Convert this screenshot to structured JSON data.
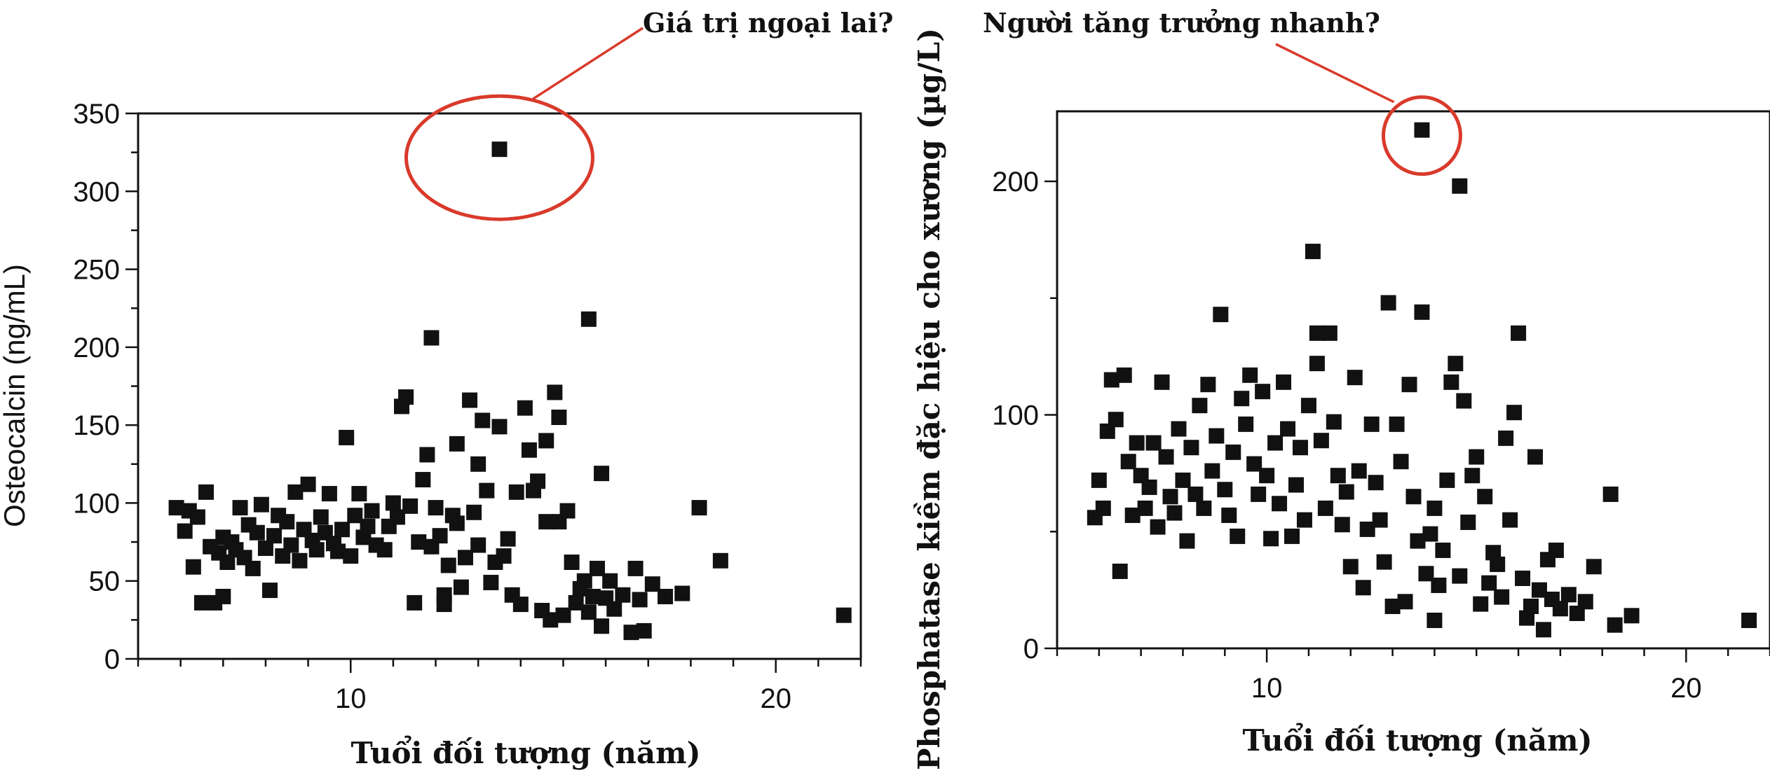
{
  "colors": {
    "marker": "#111111",
    "highlight": "#d93a2b",
    "axis": "#111111",
    "background": "#ffffff"
  },
  "chart_data": [
    {
      "type": "scatter",
      "title": "",
      "xlabel": "Tuổi đối tượng (năm)",
      "ylabel": "Osteocalcin (ng/mL)",
      "xlim": [
        5,
        22
      ],
      "ylim": [
        0,
        350
      ],
      "xticks": [
        10,
        20
      ],
      "xtick_labels": [
        "10",
        "20"
      ],
      "yticks": [
        0,
        50,
        100,
        150,
        200,
        250,
        300,
        350
      ],
      "ytick_labels": [
        "0",
        "50",
        "100",
        "150",
        "200",
        "250",
        "300",
        "350"
      ],
      "marker": "square",
      "grid": false,
      "annotation": {
        "text": "Giá trị ngoại lai?",
        "point": [
          13.5,
          327
        ]
      },
      "points": [
        [
          5.9,
          97
        ],
        [
          6.1,
          82
        ],
        [
          6.2,
          95
        ],
        [
          6.3,
          59
        ],
        [
          6.4,
          91
        ],
        [
          6.5,
          36
        ],
        [
          6.6,
          107
        ],
        [
          6.7,
          72
        ],
        [
          6.8,
          36
        ],
        [
          6.9,
          68
        ],
        [
          7.0,
          78
        ],
        [
          7.0,
          40
        ],
        [
          7.1,
          62
        ],
        [
          7.2,
          75
        ],
        [
          7.3,
          70
        ],
        [
          7.4,
          97
        ],
        [
          7.5,
          65
        ],
        [
          7.6,
          86
        ],
        [
          7.7,
          58
        ],
        [
          7.8,
          81
        ],
        [
          7.9,
          99
        ],
        [
          8.0,
          71
        ],
        [
          8.1,
          44
        ],
        [
          8.2,
          79
        ],
        [
          8.3,
          92
        ],
        [
          8.4,
          66
        ],
        [
          8.5,
          88
        ],
        [
          8.6,
          73
        ],
        [
          8.7,
          107
        ],
        [
          8.8,
          63
        ],
        [
          8.9,
          83
        ],
        [
          9.0,
          112
        ],
        [
          9.1,
          76
        ],
        [
          9.2,
          70
        ],
        [
          9.3,
          91
        ],
        [
          9.4,
          81
        ],
        [
          9.5,
          106
        ],
        [
          9.6,
          74
        ],
        [
          9.7,
          69
        ],
        [
          9.8,
          83
        ],
        [
          9.9,
          142
        ],
        [
          10.0,
          66
        ],
        [
          10.1,
          92
        ],
        [
          10.2,
          106
        ],
        [
          10.3,
          78
        ],
        [
          10.4,
          85
        ],
        [
          10.5,
          95
        ],
        [
          10.6,
          73
        ],
        [
          10.8,
          70
        ],
        [
          10.9,
          85
        ],
        [
          11.0,
          100
        ],
        [
          11.1,
          91
        ],
        [
          11.2,
          162
        ],
        [
          11.3,
          168
        ],
        [
          11.4,
          98
        ],
        [
          11.5,
          36
        ],
        [
          11.6,
          75
        ],
        [
          11.7,
          115
        ],
        [
          11.8,
          131
        ],
        [
          11.9,
          72
        ],
        [
          11.9,
          206
        ],
        [
          12.0,
          97
        ],
        [
          12.1,
          79
        ],
        [
          12.2,
          35
        ],
        [
          12.2,
          41
        ],
        [
          12.3,
          60
        ],
        [
          12.4,
          92
        ],
        [
          12.5,
          138
        ],
        [
          12.5,
          87
        ],
        [
          12.6,
          46
        ],
        [
          12.7,
          65
        ],
        [
          12.8,
          166
        ],
        [
          12.9,
          94
        ],
        [
          13.0,
          125
        ],
        [
          13.0,
          73
        ],
        [
          13.1,
          153
        ],
        [
          13.2,
          108
        ],
        [
          13.3,
          49
        ],
        [
          13.4,
          62
        ],
        [
          13.5,
          149
        ],
        [
          13.6,
          66
        ],
        [
          13.7,
          77
        ],
        [
          13.8,
          41
        ],
        [
          13.9,
          107
        ],
        [
          14.0,
          35
        ],
        [
          14.1,
          161
        ],
        [
          14.2,
          134
        ],
        [
          14.3,
          108
        ],
        [
          14.4,
          114
        ],
        [
          14.5,
          31
        ],
        [
          14.6,
          140
        ],
        [
          14.6,
          88
        ],
        [
          14.7,
          25
        ],
        [
          14.8,
          171
        ],
        [
          14.9,
          155
        ],
        [
          14.9,
          88
        ],
        [
          15.0,
          28
        ],
        [
          15.1,
          95
        ],
        [
          15.2,
          62
        ],
        [
          15.3,
          36
        ],
        [
          15.4,
          45
        ],
        [
          15.5,
          50
        ],
        [
          15.6,
          218
        ],
        [
          15.6,
          30
        ],
        [
          15.7,
          40
        ],
        [
          15.8,
          58
        ],
        [
          15.9,
          119
        ],
        [
          15.9,
          21
        ],
        [
          16.0,
          39
        ],
        [
          16.1,
          50
        ],
        [
          16.2,
          32
        ],
        [
          16.4,
          41
        ],
        [
          16.6,
          17
        ],
        [
          16.7,
          58
        ],
        [
          16.8,
          38
        ],
        [
          16.9,
          18
        ],
        [
          17.1,
          48
        ],
        [
          17.4,
          40
        ],
        [
          17.8,
          42
        ],
        [
          18.2,
          97
        ],
        [
          18.7,
          63
        ],
        [
          21.6,
          28
        ],
        [
          13.5,
          327
        ]
      ]
    },
    {
      "type": "scatter",
      "title": "",
      "xlabel": "Tuổi đối tượng (năm)",
      "ylabel": "Phosphatase kiềm đặc hiệu cho xương (µg/L)",
      "xlim": [
        5,
        22
      ],
      "ylim": [
        0,
        230
      ],
      "xticks": [
        10,
        20
      ],
      "xtick_labels": [
        "10",
        "20"
      ],
      "yticks": [
        0,
        100,
        200
      ],
      "ytick_labels": [
        "0",
        "100",
        "200"
      ],
      "marker": "square",
      "grid": false,
      "annotation": {
        "text": "Người tăng trưởng nhanh?",
        "point": [
          13.7,
          222
        ]
      },
      "points": [
        [
          5.9,
          56
        ],
        [
          6.0,
          72
        ],
        [
          6.1,
          60
        ],
        [
          6.2,
          93
        ],
        [
          6.3,
          115
        ],
        [
          6.4,
          98
        ],
        [
          6.5,
          33
        ],
        [
          6.6,
          117
        ],
        [
          6.7,
          80
        ],
        [
          6.8,
          57
        ],
        [
          6.9,
          88
        ],
        [
          7.0,
          74
        ],
        [
          7.1,
          60
        ],
        [
          7.2,
          69
        ],
        [
          7.3,
          88
        ],
        [
          7.4,
          52
        ],
        [
          7.5,
          114
        ],
        [
          7.6,
          82
        ],
        [
          7.7,
          65
        ],
        [
          7.8,
          58
        ],
        [
          7.9,
          94
        ],
        [
          8.0,
          72
        ],
        [
          8.1,
          46
        ],
        [
          8.2,
          86
        ],
        [
          8.3,
          66
        ],
        [
          8.4,
          104
        ],
        [
          8.5,
          60
        ],
        [
          8.6,
          113
        ],
        [
          8.7,
          76
        ],
        [
          8.8,
          91
        ],
        [
          8.9,
          143
        ],
        [
          9.0,
          68
        ],
        [
          9.1,
          57
        ],
        [
          9.2,
          84
        ],
        [
          9.3,
          48
        ],
        [
          9.4,
          107
        ],
        [
          9.5,
          96
        ],
        [
          9.6,
          117
        ],
        [
          9.7,
          79
        ],
        [
          9.8,
          66
        ],
        [
          9.9,
          110
        ],
        [
          10.0,
          74
        ],
        [
          10.1,
          47
        ],
        [
          10.2,
          88
        ],
        [
          10.3,
          62
        ],
        [
          10.4,
          114
        ],
        [
          10.5,
          94
        ],
        [
          10.6,
          48
        ],
        [
          10.7,
          70
        ],
        [
          10.8,
          86
        ],
        [
          10.9,
          55
        ],
        [
          11.0,
          104
        ],
        [
          11.1,
          170
        ],
        [
          11.2,
          122
        ],
        [
          11.2,
          135
        ],
        [
          11.3,
          89
        ],
        [
          11.4,
          60
        ],
        [
          11.5,
          135
        ],
        [
          11.6,
          97
        ],
        [
          11.7,
          74
        ],
        [
          11.8,
          53
        ],
        [
          11.9,
          67
        ],
        [
          12.0,
          35
        ],
        [
          12.1,
          116
        ],
        [
          12.2,
          76
        ],
        [
          12.3,
          26
        ],
        [
          12.4,
          51
        ],
        [
          12.5,
          96
        ],
        [
          12.6,
          71
        ],
        [
          12.7,
          55
        ],
        [
          12.8,
          37
        ],
        [
          12.9,
          148
        ],
        [
          13.0,
          18
        ],
        [
          13.1,
          96
        ],
        [
          13.2,
          80
        ],
        [
          13.3,
          20
        ],
        [
          13.4,
          113
        ],
        [
          13.5,
          65
        ],
        [
          13.6,
          46
        ],
        [
          13.7,
          144
        ],
        [
          13.8,
          32
        ],
        [
          13.9,
          49
        ],
        [
          14.0,
          12
        ],
        [
          14.0,
          60
        ],
        [
          14.1,
          27
        ],
        [
          14.2,
          42
        ],
        [
          14.3,
          72
        ],
        [
          14.4,
          114
        ],
        [
          14.5,
          122
        ],
        [
          14.6,
          31
        ],
        [
          14.7,
          106
        ],
        [
          14.8,
          54
        ],
        [
          14.9,
          74
        ],
        [
          15.0,
          82
        ],
        [
          15.1,
          19
        ],
        [
          15.2,
          65
        ],
        [
          15.3,
          28
        ],
        [
          15.4,
          41
        ],
        [
          15.5,
          36
        ],
        [
          15.6,
          22
        ],
        [
          15.7,
          90
        ],
        [
          15.8,
          55
        ],
        [
          15.9,
          101
        ],
        [
          16.0,
          135
        ],
        [
          16.1,
          30
        ],
        [
          16.2,
          13
        ],
        [
          16.3,
          18
        ],
        [
          16.4,
          82
        ],
        [
          16.5,
          25
        ],
        [
          16.6,
          8
        ],
        [
          16.7,
          38
        ],
        [
          16.8,
          21
        ],
        [
          16.9,
          42
        ],
        [
          17.0,
          17
        ],
        [
          17.2,
          23
        ],
        [
          17.4,
          15
        ],
        [
          17.6,
          20
        ],
        [
          17.8,
          35
        ],
        [
          18.2,
          66
        ],
        [
          18.3,
          10
        ],
        [
          18.7,
          14
        ],
        [
          21.5,
          12
        ],
        [
          14.6,
          198
        ],
        [
          13.7,
          222
        ]
      ]
    }
  ]
}
